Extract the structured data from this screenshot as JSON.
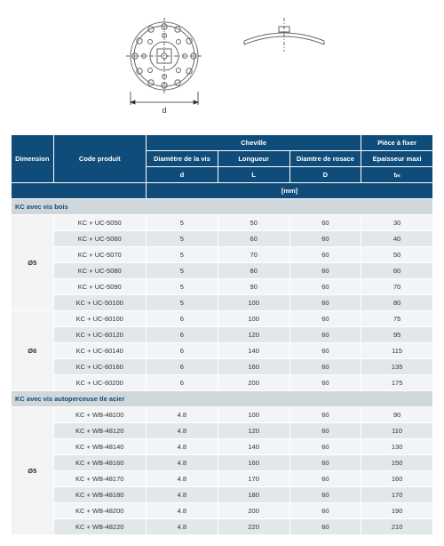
{
  "headers": {
    "dimension": "Dimension",
    "code": "Code produit",
    "cheville": "Cheville",
    "piece": "Pièce à fixer",
    "diam_vis": "Diamètre de la vis",
    "longueur": "Longueur",
    "diam_rosace": "Diamtre de rosace",
    "epaisseur": "Epaisseur maxi",
    "sym_d": "d",
    "sym_L": "L",
    "sym_D": "D",
    "sym_t": "tₘ",
    "unit": "[mm]"
  },
  "diagram_label": "d",
  "sections": [
    {
      "title": "KC avec vis bois",
      "groups": [
        {
          "dimension": "Ø5",
          "rows": [
            {
              "code": "KC + UC-5050",
              "d": "5",
              "L": "50",
              "D": "60",
              "t": "30"
            },
            {
              "code": "KC + UC-5060",
              "d": "5",
              "L": "60",
              "D": "60",
              "t": "40"
            },
            {
              "code": "KC + UC-5070",
              "d": "5",
              "L": "70",
              "D": "60",
              "t": "50"
            },
            {
              "code": "KC + UC-5080",
              "d": "5",
              "L": "80",
              "D": "60",
              "t": "60"
            },
            {
              "code": "KC + UC-5090",
              "d": "5",
              "L": "90",
              "D": "60",
              "t": "70"
            },
            {
              "code": "KC + UC-50100",
              "d": "5",
              "L": "100",
              "D": "60",
              "t": "80"
            }
          ]
        },
        {
          "dimension": "Ø6",
          "rows": [
            {
              "code": "KC + UC-60100",
              "d": "6",
              "L": "100",
              "D": "60",
              "t": "75"
            },
            {
              "code": "KC + UC-60120",
              "d": "6",
              "L": "120",
              "D": "60",
              "t": "95"
            },
            {
              "code": "KC + UC-60140",
              "d": "6",
              "L": "140",
              "D": "60",
              "t": "115"
            },
            {
              "code": "KC + UC-60160",
              "d": "6",
              "L": "160",
              "D": "60",
              "t": "135"
            },
            {
              "code": "KC + UC-60200",
              "d": "6",
              "L": "200",
              "D": "60",
              "t": "175"
            }
          ]
        }
      ]
    },
    {
      "title": "KC avec vis autoperceuse tle acier",
      "groups": [
        {
          "dimension": "Ø5",
          "rows": [
            {
              "code": "KC + WB-48100",
              "d": "4.8",
              "L": "100",
              "D": "60",
              "t": "90"
            },
            {
              "code": "KC + WB-48120",
              "d": "4.8",
              "L": "120",
              "D": "60",
              "t": "110"
            },
            {
              "code": "KC + WB-48140",
              "d": "4.8",
              "L": "140",
              "D": "60",
              "t": "130"
            },
            {
              "code": "KC + WB-48160",
              "d": "4.8",
              "L": "160",
              "D": "60",
              "t": "150"
            },
            {
              "code": "KC + WB-48170",
              "d": "4.8",
              "L": "170",
              "D": "60",
              "t": "160"
            },
            {
              "code": "KC + WB-48180",
              "d": "4.8",
              "L": "180",
              "D": "60",
              "t": "170"
            },
            {
              "code": "KC + WB-48200",
              "d": "4.8",
              "L": "200",
              "D": "60",
              "t": "190"
            },
            {
              "code": "KC + WB-48220",
              "d": "4.8",
              "L": "220",
              "D": "60",
              "t": "210"
            }
          ]
        }
      ]
    }
  ]
}
